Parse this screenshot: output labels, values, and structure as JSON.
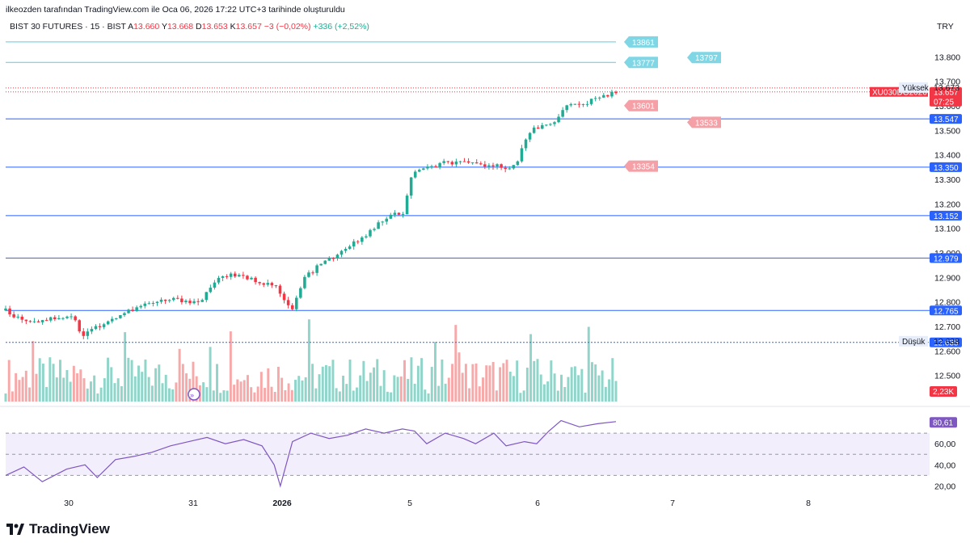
{
  "caption": "ilkeozden tarafından TradingView.com ile Oca 06, 2026 17:22 UTC+3 tarihinde oluşturuldu",
  "symbol": {
    "name": "BIST 30 FUTURES · 15 · BIST",
    "open_label": "A",
    "open": "13.660",
    "high_label": "Y",
    "high": "13.668",
    "low_label": "D",
    "low": "13.653",
    "close_label": "K",
    "close": "13.657",
    "change": "−3 (−0,02%)",
    "change_day": "+336 (+2,52%)"
  },
  "currency": "TRY",
  "brand": "TradingView",
  "colors": {
    "up": "#22ab94",
    "down": "#f23645",
    "vol_up": "#8fd5c9",
    "vol_down": "#f7a9a9",
    "hline": "#2962ff",
    "cyan": "#5ecbe0",
    "rsi": "#7e57c2",
    "rsi_band": "#f3eefb"
  },
  "chart_data": [
    {
      "type": "candlestick",
      "series_name": "BIST 30 FUTURES",
      "ylim": [
        12400,
        13900
      ],
      "price_ticks": [
        "13.800",
        "13.700",
        "13.600",
        "13.500",
        "13.400",
        "13.300",
        "13.200",
        "13.100",
        "13.000",
        "12.900",
        "12.800",
        "12.700",
        "12.600",
        "12.500"
      ],
      "x_ticks": [
        "30",
        "31",
        "2026",
        "5",
        "6",
        "7",
        "8"
      ],
      "high_label": "Yüksek",
      "high_value": "13.673",
      "low_label": "Düşük",
      "low_value": "12.638",
      "last_price": "13.657",
      "last_symbol": "XU030DG2026",
      "countdown": "07:25",
      "path": [
        [
          0,
          12765
        ],
        [
          0.02,
          12735
        ],
        [
          0.05,
          12720
        ],
        [
          0.08,
          12735
        ],
        [
          0.11,
          12745
        ],
        [
          0.125,
          12660
        ],
        [
          0.15,
          12700
        ],
        [
          0.2,
          12760
        ],
        [
          0.23,
          12790
        ],
        [
          0.27,
          12810
        ],
        [
          0.32,
          12800
        ],
        [
          0.34,
          12880
        ],
        [
          0.36,
          12910
        ],
        [
          0.39,
          12900
        ],
        [
          0.42,
          12880
        ],
        [
          0.44,
          12870
        ],
        [
          0.46,
          12790
        ],
        [
          0.47,
          12770
        ],
        [
          0.49,
          12900
        ],
        [
          0.52,
          12960
        ],
        [
          0.55,
          13000
        ],
        [
          0.57,
          13040
        ],
        [
          0.6,
          13090
        ],
        [
          0.62,
          13140
        ],
        [
          0.64,
          13160
        ],
        [
          0.655,
          13150
        ],
        [
          0.66,
          13300
        ],
        [
          0.67,
          13330
        ],
        [
          0.7,
          13350
        ],
        [
          0.72,
          13370
        ],
        [
          0.75,
          13365
        ],
        [
          0.78,
          13360
        ],
        [
          0.82,
          13350
        ],
        [
          0.835,
          13360
        ],
        [
          0.86,
          13500
        ],
        [
          0.88,
          13520
        ],
        [
          0.9,
          13540
        ],
        [
          0.92,
          13600
        ],
        [
          0.95,
          13610
        ],
        [
          0.98,
          13640
        ],
        [
          1,
          13657
        ]
      ],
      "horizontal_lines": [
        {
          "value": 12765,
          "label": "12.765"
        },
        {
          "value": 12979,
          "label": "12.979"
        },
        {
          "value": 13152,
          "label": "13.152"
        },
        {
          "value": 13350,
          "label": "13.350"
        },
        {
          "value": 13547,
          "label": "13.547"
        },
        {
          "value": 12635,
          "label": "12.635"
        }
      ],
      "flags": [
        {
          "label": "13861",
          "value": 13861,
          "style": "cyan"
        },
        {
          "label": "13777",
          "value": 13777,
          "style": "cyan"
        },
        {
          "label": "13797",
          "value": 13797,
          "style": "cyan"
        },
        {
          "label": "13601",
          "value": 13601,
          "style": "red"
        },
        {
          "label": "13533",
          "value": 13533,
          "style": "red"
        },
        {
          "label": "13354",
          "value": 13354,
          "style": "red"
        }
      ]
    },
    {
      "type": "bar",
      "series_name": "Volume",
      "last_value_label": "2,23K",
      "values": []
    },
    {
      "type": "line",
      "series_name": "RSI",
      "ylim": [
        15,
        90
      ],
      "ticks": [
        "60,00",
        "40,00",
        "20,00"
      ],
      "band": [
        30,
        70
      ],
      "midline": 50,
      "last_value_label": "80,61",
      "path": [
        [
          0,
          30
        ],
        [
          0.03,
          38
        ],
        [
          0.06,
          24
        ],
        [
          0.1,
          36
        ],
        [
          0.13,
          40
        ],
        [
          0.15,
          28
        ],
        [
          0.18,
          45
        ],
        [
          0.21,
          48
        ],
        [
          0.24,
          52
        ],
        [
          0.27,
          58
        ],
        [
          0.3,
          62
        ],
        [
          0.33,
          66
        ],
        [
          0.36,
          60
        ],
        [
          0.39,
          64
        ],
        [
          0.42,
          58
        ],
        [
          0.44,
          40
        ],
        [
          0.45,
          20
        ],
        [
          0.47,
          62
        ],
        [
          0.5,
          70
        ],
        [
          0.53,
          65
        ],
        [
          0.56,
          68
        ],
        [
          0.59,
          74
        ],
        [
          0.62,
          70
        ],
        [
          0.65,
          74
        ],
        [
          0.67,
          72
        ],
        [
          0.69,
          60
        ],
        [
          0.72,
          70
        ],
        [
          0.75,
          65
        ],
        [
          0.77,
          60
        ],
        [
          0.8,
          70
        ],
        [
          0.82,
          58
        ],
        [
          0.85,
          62
        ],
        [
          0.87,
          60
        ],
        [
          0.89,
          72
        ],
        [
          0.91,
          82
        ],
        [
          0.94,
          76
        ],
        [
          0.97,
          79
        ],
        [
          1,
          81
        ]
      ]
    }
  ]
}
